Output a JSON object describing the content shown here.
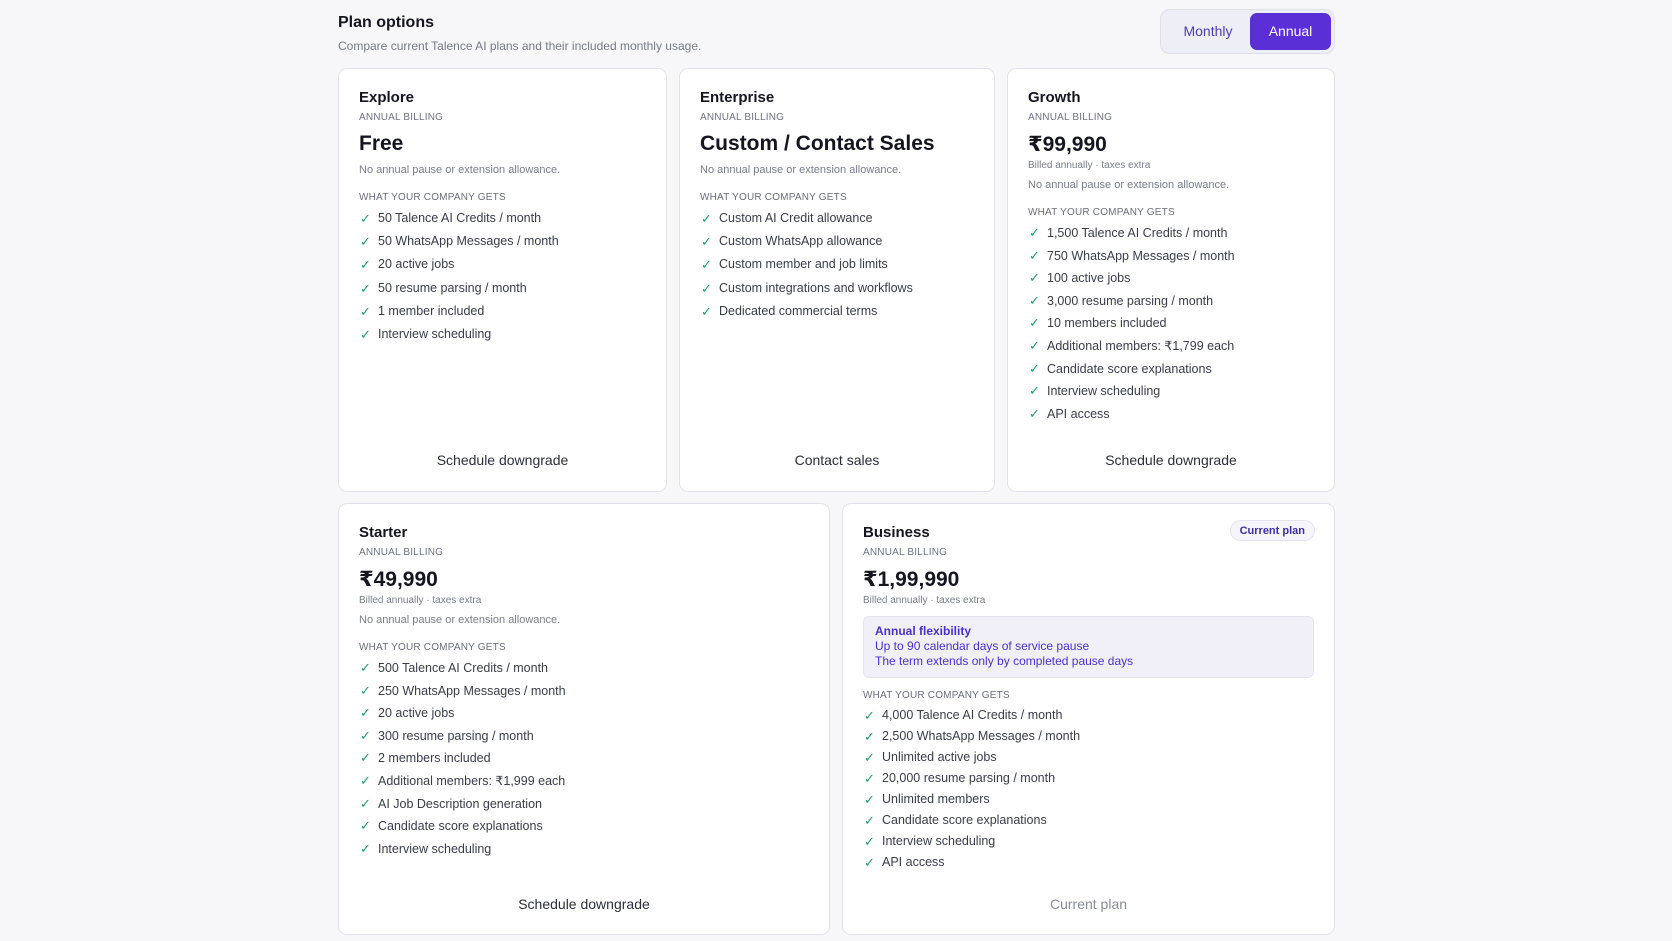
{
  "header": {
    "title": "Plan options",
    "subtitle": "Compare current Talence AI plans and their included monthly usage."
  },
  "billing_toggle": {
    "monthly_label": "Monthly",
    "annual_label": "Annual",
    "selected": "Annual"
  },
  "colors": {
    "accent": "#5b2fd6",
    "check": "#1f9d6b",
    "flex_text": "#4b30c9"
  },
  "section_label": "WHAT YOUR COMPANY GETS",
  "plans": {
    "explore": {
      "name": "Explore",
      "billing": "ANNUAL BILLING",
      "price": "Free",
      "pause_note": "No annual pause or extension allowance.",
      "features": [
        "50 Talence AI Credits / month",
        "50 WhatsApp Messages / month",
        "20 active jobs",
        "50 resume parsing / month",
        "1 member included",
        "Interview scheduling"
      ],
      "action": "Schedule downgrade"
    },
    "enterprise": {
      "name": "Enterprise",
      "billing": "ANNUAL BILLING",
      "price": "Custom / Contact Sales",
      "pause_note": "No annual pause or extension allowance.",
      "features": [
        "Custom AI Credit allowance",
        "Custom WhatsApp allowance",
        "Custom member and job limits",
        "Custom integrations and workflows",
        "Dedicated commercial terms"
      ],
      "action": "Contact sales"
    },
    "growth": {
      "name": "Growth",
      "billing": "ANNUAL BILLING",
      "price": "₹99,990",
      "price_note": "Billed annually · taxes extra",
      "pause_note": "No annual pause or extension allowance.",
      "features": [
        "1,500 Talence AI Credits / month",
        "750 WhatsApp Messages / month",
        "100 active jobs",
        "3,000 resume parsing / month",
        "10 members included",
        "Additional members: ₹1,799 each",
        "Candidate score explanations",
        "Interview scheduling",
        "API access"
      ],
      "action": "Schedule downgrade"
    },
    "starter": {
      "name": "Starter",
      "billing": "ANNUAL BILLING",
      "price": "₹49,990",
      "price_note": "Billed annually · taxes extra",
      "pause_note": "No annual pause or extension allowance.",
      "features": [
        "500 Talence AI Credits / month",
        "250 WhatsApp Messages / month",
        "20 active jobs",
        "300 resume parsing / month",
        "2 members included",
        "Additional members: ₹1,999 each",
        "AI Job Description generation",
        "Candidate score explanations",
        "Interview scheduling"
      ],
      "action": "Schedule downgrade"
    },
    "business": {
      "name": "Business",
      "badge": "Current plan",
      "billing": "ANNUAL BILLING",
      "price": "₹1,99,990",
      "price_note": "Billed annually · taxes extra",
      "flexibility": {
        "title": "Annual flexibility",
        "line1": "Up to 90 calendar days of service pause",
        "line2": "The term extends only by completed pause days"
      },
      "features": [
        "4,000 Talence AI Credits / month",
        "2,500 WhatsApp Messages / month",
        "Unlimited active jobs",
        "20,000 resume parsing / month",
        "Unlimited members",
        "Candidate score explanations",
        "Interview scheduling",
        "API access"
      ],
      "action": "Current plan"
    }
  }
}
